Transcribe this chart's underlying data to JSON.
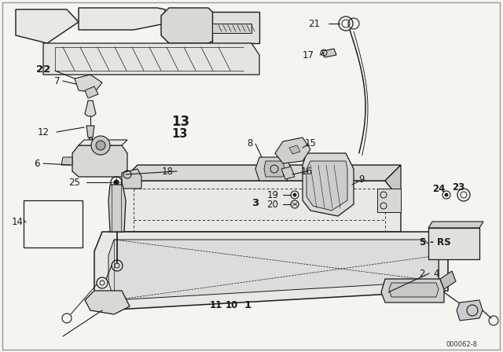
{
  "bg_color": "#f5f5f0",
  "line_color": "#1a1a1a",
  "fig_width": 6.4,
  "fig_height": 4.48,
  "dpi": 100,
  "border_color": "#888888",
  "label_fs": 8.5,
  "part_code": "000062-8"
}
